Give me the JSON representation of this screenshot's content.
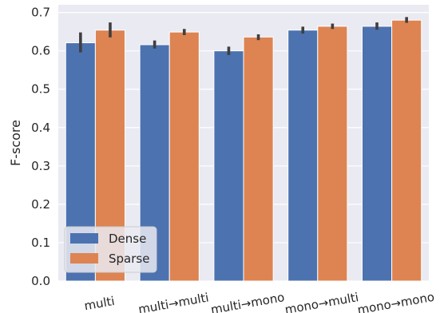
{
  "chart_data": {
    "type": "bar",
    "categories": [
      "multi",
      "multi→multi",
      "multi→mono",
      "mono→multi",
      "mono→mono"
    ],
    "series": [
      {
        "name": "Dense",
        "values": [
          0.621,
          0.616,
          0.6,
          0.654,
          0.664
        ],
        "err_low": [
          0.596,
          0.606,
          0.589,
          0.645,
          0.655
        ],
        "err_high": [
          0.648,
          0.627,
          0.611,
          0.663,
          0.674
        ],
        "color": "#4C72B0"
      },
      {
        "name": "Sparse",
        "values": [
          0.654,
          0.649,
          0.636,
          0.664,
          0.68
        ],
        "err_low": [
          0.635,
          0.641,
          0.628,
          0.657,
          0.673
        ],
        "err_high": [
          0.674,
          0.657,
          0.643,
          0.671,
          0.688
        ],
        "color": "#DD8452"
      }
    ],
    "xlabel": "",
    "ylabel": "F-score",
    "ylim": [
      0,
      0.72
    ],
    "yticks": [
      "0.0",
      "0.1",
      "0.2",
      "0.3",
      "0.4",
      "0.5",
      "0.6",
      "0.7"
    ],
    "grid": true,
    "legend_position": "bottom-left",
    "colors": {
      "plot_background": "#EAEAF2",
      "grid": "#FFFFFF",
      "error_bar": "#3F3F3F"
    }
  }
}
